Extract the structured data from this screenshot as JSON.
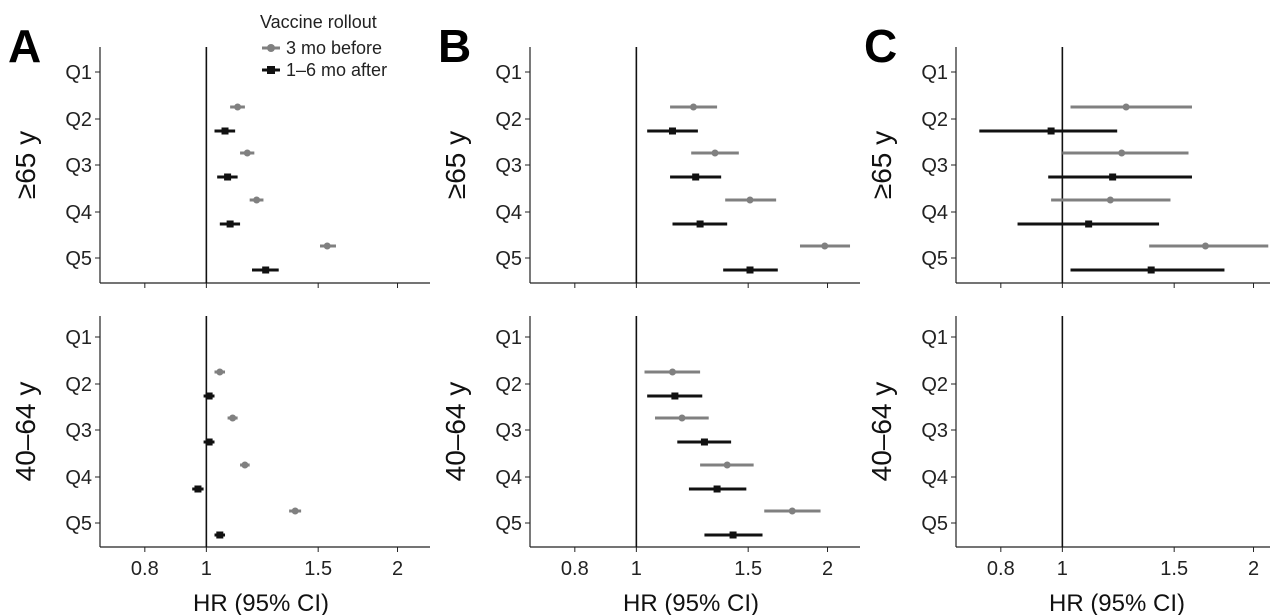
{
  "chart_data": {
    "type": "forest",
    "xlabel": "HR (95% CI)",
    "x_scale": "log",
    "xlim": [
      0.68,
      2.25
    ],
    "x_ticks": [
      0.8,
      1,
      1.5,
      2
    ],
    "x_tick_labels": [
      "0.8",
      "1",
      "1.5",
      "2"
    ],
    "reference_line": 1,
    "rows": [
      "Q1",
      "Q2",
      "Q3",
      "Q4",
      "Q5"
    ],
    "row_groups": [
      "≥65 y",
      "40–64 y"
    ],
    "legend": {
      "title": "Vaccine rollout",
      "position": "top",
      "entries": [
        {
          "key": "before",
          "label": "3 mo before",
          "color": "#808080"
        },
        {
          "key": "after",
          "label": "1–6 mo after",
          "color": "#111111"
        }
      ]
    },
    "panels": [
      {
        "label": "A",
        "groups": [
          {
            "name": "≥65 y",
            "series": {
              "before": [
                null,
                {
                  "est": 1.12,
                  "lo": 1.09,
                  "hi": 1.15
                },
                {
                  "est": 1.16,
                  "lo": 1.13,
                  "hi": 1.19
                },
                {
                  "est": 1.2,
                  "lo": 1.17,
                  "hi": 1.23
                },
                {
                  "est": 1.55,
                  "lo": 1.51,
                  "hi": 1.6
                }
              ],
              "after": [
                null,
                {
                  "est": 1.07,
                  "lo": 1.03,
                  "hi": 1.11
                },
                {
                  "est": 1.08,
                  "lo": 1.04,
                  "hi": 1.12
                },
                {
                  "est": 1.09,
                  "lo": 1.05,
                  "hi": 1.13
                },
                {
                  "est": 1.24,
                  "lo": 1.18,
                  "hi": 1.3
                }
              ]
            }
          },
          {
            "name": "40–64 y",
            "series": {
              "before": [
                null,
                {
                  "est": 1.05,
                  "lo": 1.03,
                  "hi": 1.07
                },
                {
                  "est": 1.1,
                  "lo": 1.08,
                  "hi": 1.12
                },
                {
                  "est": 1.15,
                  "lo": 1.13,
                  "hi": 1.17
                },
                {
                  "est": 1.38,
                  "lo": 1.35,
                  "hi": 1.41
                }
              ],
              "after": [
                null,
                {
                  "est": 1.01,
                  "lo": 0.99,
                  "hi": 1.03
                },
                {
                  "est": 1.01,
                  "lo": 0.99,
                  "hi": 1.03
                },
                {
                  "est": 0.97,
                  "lo": 0.95,
                  "hi": 0.99
                },
                {
                  "est": 1.05,
                  "lo": 1.03,
                  "hi": 1.07
                }
              ]
            }
          }
        ]
      },
      {
        "label": "B",
        "groups": [
          {
            "name": "≥65 y",
            "series": {
              "before": [
                null,
                {
                  "est": 1.23,
                  "lo": 1.13,
                  "hi": 1.34
                },
                {
                  "est": 1.33,
                  "lo": 1.22,
                  "hi": 1.45
                },
                {
                  "est": 1.51,
                  "lo": 1.38,
                  "hi": 1.66
                },
                {
                  "est": 1.98,
                  "lo": 1.81,
                  "hi": 2.17
                }
              ],
              "after": [
                null,
                {
                  "est": 1.14,
                  "lo": 1.04,
                  "hi": 1.25
                },
                {
                  "est": 1.24,
                  "lo": 1.13,
                  "hi": 1.36
                },
                {
                  "est": 1.26,
                  "lo": 1.14,
                  "hi": 1.39
                },
                {
                  "est": 1.51,
                  "lo": 1.37,
                  "hi": 1.67
                }
              ]
            }
          },
          {
            "name": "40–64 y",
            "series": {
              "before": [
                null,
                {
                  "est": 1.14,
                  "lo": 1.03,
                  "hi": 1.26
                },
                {
                  "est": 1.18,
                  "lo": 1.07,
                  "hi": 1.3
                },
                {
                  "est": 1.39,
                  "lo": 1.26,
                  "hi": 1.53
                },
                {
                  "est": 1.76,
                  "lo": 1.59,
                  "hi": 1.95
                }
              ],
              "after": [
                null,
                {
                  "est": 1.15,
                  "lo": 1.04,
                  "hi": 1.27
                },
                {
                  "est": 1.28,
                  "lo": 1.16,
                  "hi": 1.41
                },
                {
                  "est": 1.34,
                  "lo": 1.21,
                  "hi": 1.49
                },
                {
                  "est": 1.42,
                  "lo": 1.28,
                  "hi": 1.58
                }
              ]
            }
          }
        ]
      },
      {
        "label": "C",
        "groups": [
          {
            "name": "≥65 y",
            "series": {
              "before": [
                null,
                {
                  "est": 1.26,
                  "lo": 1.03,
                  "hi": 1.6
                },
                {
                  "est": 1.24,
                  "lo": 1.0,
                  "hi": 1.58
                },
                {
                  "est": 1.19,
                  "lo": 0.96,
                  "hi": 1.48
                },
                {
                  "est": 1.68,
                  "lo": 1.37,
                  "hi": 2.11
                }
              ],
              "after": [
                null,
                {
                  "est": 0.96,
                  "lo": 0.74,
                  "hi": 1.22
                },
                {
                  "est": 1.2,
                  "lo": 0.95,
                  "hi": 1.6
                },
                {
                  "est": 1.1,
                  "lo": 0.85,
                  "hi": 1.42
                },
                {
                  "est": 1.38,
                  "lo": 1.03,
                  "hi": 1.8
                }
              ]
            }
          },
          {
            "name": "40–64 y",
            "series": {
              "before": [
                null,
                null,
                null,
                null,
                null
              ],
              "after": [
                null,
                null,
                null,
                null,
                null
              ]
            }
          }
        ]
      }
    ]
  }
}
